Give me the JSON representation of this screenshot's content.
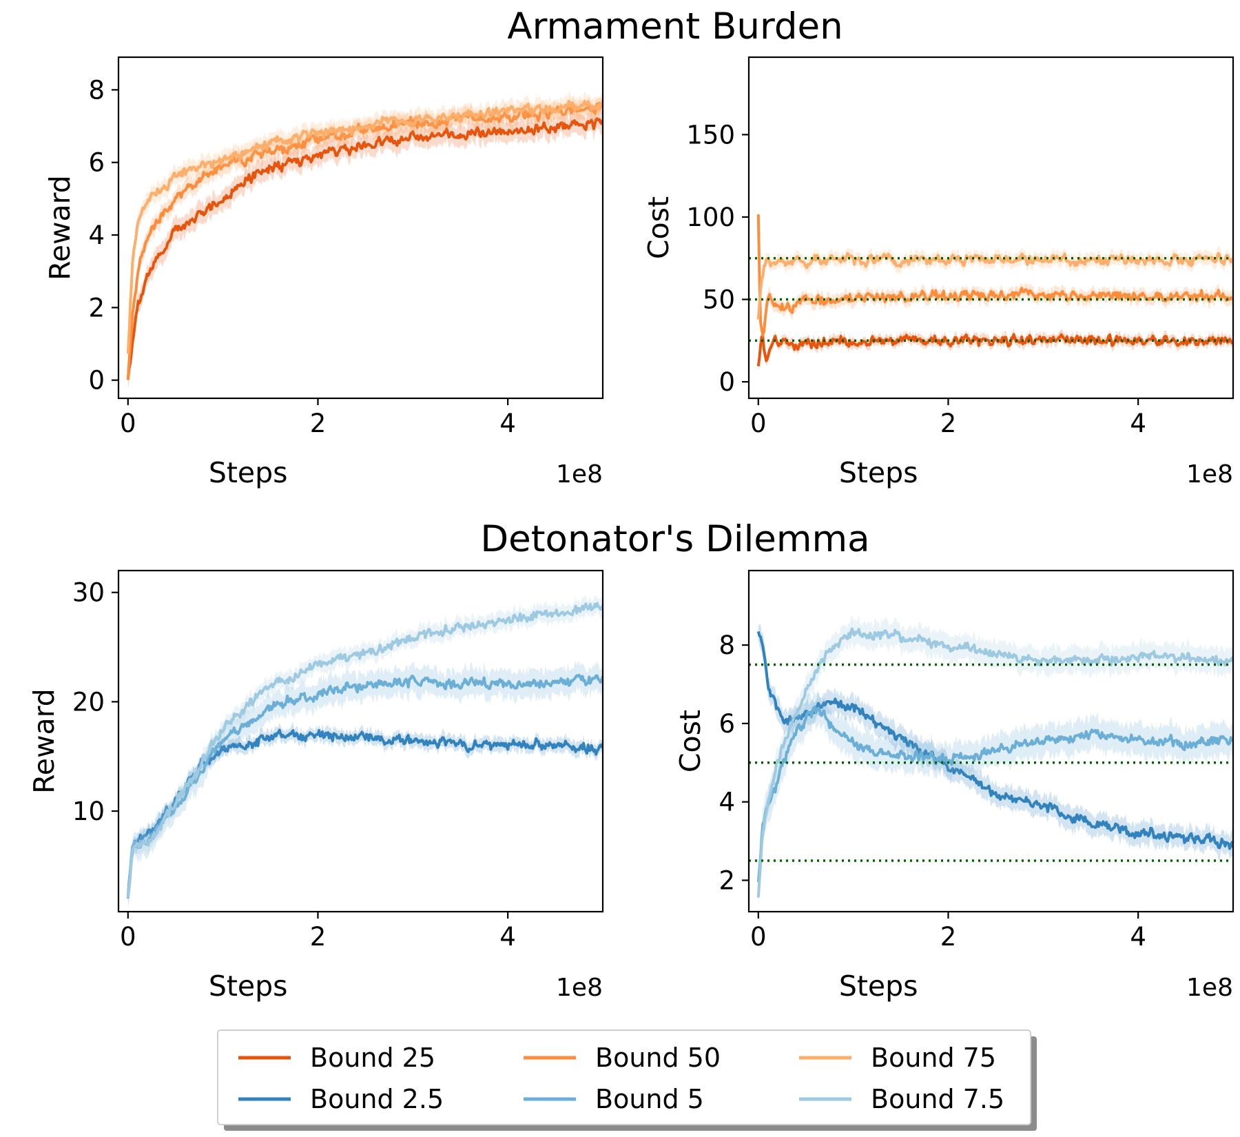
{
  "titles": [
    "Armament Burden",
    "Detonator's Dilemma"
  ],
  "chart_data": [
    {
      "type": "line",
      "group": "Armament Burden",
      "panel": "reward",
      "xlabel": "Steps",
      "ylabel": "Reward",
      "x_offset_label": "1e8",
      "xlim": [
        -0.1,
        5.0
      ],
      "ylim": [
        -0.5,
        8.9
      ],
      "xticks": [
        0,
        2,
        4
      ],
      "yticks": [
        0,
        2,
        4,
        6,
        8
      ],
      "grid": false,
      "series": [
        {
          "name": "Bound 25",
          "color": "#e6550d",
          "band": 0.35,
          "x": [
            0,
            0.05,
            0.1,
            0.2,
            0.3,
            0.5,
            0.75,
            1.0,
            1.25,
            1.5,
            2.0,
            2.5,
            3.0,
            3.5,
            4.0,
            4.5,
            5.0
          ],
          "y": [
            0.1,
            1.0,
            2.0,
            2.8,
            3.4,
            4.1,
            4.6,
            5.0,
            5.5,
            5.8,
            6.2,
            6.5,
            6.7,
            6.8,
            6.9,
            7.0,
            7.1
          ]
        },
        {
          "name": "Bound 50",
          "color": "#fd8d3c",
          "band": 0.3,
          "x": [
            0,
            0.05,
            0.1,
            0.2,
            0.3,
            0.5,
            0.75,
            1.0,
            1.25,
            1.5,
            2.0,
            2.5,
            3.0,
            3.5,
            4.0,
            4.5,
            5.0
          ],
          "y": [
            0.1,
            1.8,
            3.0,
            3.9,
            4.4,
            5.0,
            5.5,
            5.9,
            6.1,
            6.3,
            6.6,
            6.9,
            7.1,
            7.2,
            7.3,
            7.4,
            7.5
          ]
        },
        {
          "name": "Bound 75",
          "color": "#fdae6b",
          "band": 0.3,
          "x": [
            0,
            0.05,
            0.1,
            0.2,
            0.3,
            0.5,
            0.75,
            1.0,
            1.25,
            1.5,
            2.0,
            2.5,
            3.0,
            3.5,
            4.0,
            4.5,
            5.0
          ],
          "y": [
            0.8,
            3.3,
            4.3,
            4.9,
            5.2,
            5.6,
            5.9,
            6.1,
            6.3,
            6.5,
            6.8,
            7.0,
            7.2,
            7.3,
            7.4,
            7.5,
            7.6
          ]
        }
      ]
    },
    {
      "type": "line",
      "group": "Armament Burden",
      "panel": "cost",
      "xlabel": "Steps",
      "ylabel": "Cost",
      "x_offset_label": "1e8",
      "xlim": [
        -0.1,
        5.0
      ],
      "ylim": [
        -10,
        197
      ],
      "xticks": [
        0,
        2,
        4
      ],
      "yticks": [
        0,
        50,
        100,
        150
      ],
      "grid": false,
      "thresholds": [
        25,
        50,
        75
      ],
      "threshold_color": "#006400",
      "series": [
        {
          "name": "Bound 25",
          "color": "#e6550d",
          "band": 4,
          "x": [
            0,
            0.04,
            0.08,
            0.15,
            0.3,
            0.5,
            1.0,
            2.0,
            3.0,
            4.0,
            5.0
          ],
          "y": [
            12,
            30,
            14,
            26,
            22,
            24,
            25,
            25,
            25,
            25,
            25
          ]
        },
        {
          "name": "Bound 50",
          "color": "#fd8d3c",
          "band": 5,
          "x": [
            0,
            0.02,
            0.05,
            0.1,
            0.2,
            0.35,
            0.5,
            1.0,
            2.0,
            3.0,
            4.0,
            5.0
          ],
          "y": [
            104,
            40,
            28,
            52,
            45,
            44,
            50,
            51,
            52,
            52,
            52,
            52
          ]
        },
        {
          "name": "Bound 75",
          "color": "#fdae6b",
          "band": 5,
          "x": [
            0,
            0.04,
            0.08,
            0.15,
            0.3,
            0.5,
            1.0,
            2.0,
            3.0,
            4.0,
            5.0
          ],
          "y": [
            40,
            66,
            72,
            74,
            73,
            74,
            74,
            74,
            74,
            74,
            74
          ]
        }
      ]
    },
    {
      "type": "line",
      "group": "Detonator's Dilemma",
      "panel": "reward",
      "xlabel": "Steps",
      "ylabel": "Reward",
      "x_offset_label": "1e8",
      "xlim": [
        -0.1,
        5.0
      ],
      "ylim": [
        0.8,
        32
      ],
      "xticks": [
        0,
        2,
        4
      ],
      "yticks": [
        10,
        20,
        30
      ],
      "grid": false,
      "series": [
        {
          "name": "Bound 2.5",
          "color": "#3182bd",
          "band": 0.8,
          "x": [
            0,
            0.05,
            0.25,
            0.5,
            0.75,
            1.0,
            1.5,
            2.0,
            2.5,
            3.0,
            3.5,
            4.0,
            4.5,
            5.0
          ],
          "y": [
            2.5,
            7.0,
            8.0,
            11.0,
            14.0,
            15.5,
            16.8,
            17.0,
            16.8,
            16.5,
            16.2,
            16.0,
            16.0,
            15.8
          ]
        },
        {
          "name": "Bound 5",
          "color": "#6baed6",
          "band": 1.5,
          "x": [
            0,
            0.05,
            0.25,
            0.5,
            0.75,
            1.0,
            1.5,
            2.0,
            2.5,
            3.0,
            3.5,
            4.0,
            4.5,
            5.0
          ],
          "y": [
            2.5,
            6.5,
            7.8,
            10.0,
            13.5,
            16.5,
            19.5,
            20.8,
            21.5,
            21.8,
            21.8,
            21.5,
            21.8,
            22.2
          ]
        },
        {
          "name": "Bound 7.5",
          "color": "#9ecae1",
          "band": 1.0,
          "x": [
            0,
            0.05,
            0.25,
            0.5,
            0.75,
            1.0,
            1.5,
            2.0,
            2.5,
            3.0,
            3.5,
            4.0,
            4.5,
            5.0
          ],
          "y": [
            2.5,
            6.5,
            7.5,
            10.5,
            14.0,
            17.5,
            21.5,
            23.5,
            24.5,
            25.8,
            26.8,
            27.5,
            28.2,
            28.6
          ]
        }
      ]
    },
    {
      "type": "line",
      "group": "Detonator's Dilemma",
      "panel": "cost",
      "xlabel": "Steps",
      "ylabel": "Cost",
      "x_offset_label": "1e8",
      "xlim": [
        -0.1,
        5.0
      ],
      "ylim": [
        1.2,
        9.9
      ],
      "xticks": [
        0,
        2,
        4
      ],
      "yticks": [
        2,
        4,
        6,
        8
      ],
      "grid": false,
      "thresholds": [
        2.5,
        5,
        7.5
      ],
      "threshold_color": "#006400",
      "series": [
        {
          "name": "Bound 2.5",
          "color": "#3182bd",
          "band": 0.35,
          "x": [
            0,
            0.03,
            0.1,
            0.25,
            0.5,
            0.75,
            1.0,
            1.25,
            1.5,
            2.0,
            2.25,
            2.5,
            3.0,
            3.5,
            4.0,
            4.5,
            5.0
          ],
          "y": [
            8.4,
            8.2,
            7.0,
            6.0,
            6.2,
            6.6,
            6.4,
            6.0,
            5.6,
            4.9,
            4.6,
            4.2,
            3.9,
            3.5,
            3.2,
            3.1,
            2.9
          ]
        },
        {
          "name": "Bound 5",
          "color": "#6baed6",
          "band": 0.5,
          "x": [
            0,
            0.05,
            0.2,
            0.4,
            0.6,
            0.8,
            1.0,
            1.25,
            1.5,
            2.0,
            2.5,
            3.0,
            3.5,
            4.0,
            4.5,
            5.0
          ],
          "y": [
            2.0,
            3.5,
            4.5,
            5.8,
            6.4,
            5.9,
            5.5,
            5.3,
            5.2,
            5.1,
            5.3,
            5.6,
            5.7,
            5.6,
            5.5,
            5.6
          ]
        },
        {
          "name": "Bound 7.5",
          "color": "#9ecae1",
          "band": 0.4,
          "x": [
            0,
            0.05,
            0.2,
            0.4,
            0.6,
            0.8,
            1.0,
            1.25,
            1.5,
            2.0,
            2.5,
            3.0,
            3.5,
            4.0,
            4.5,
            5.0
          ],
          "y": [
            1.6,
            3.3,
            5.0,
            6.3,
            7.3,
            8.0,
            8.3,
            8.3,
            8.2,
            8.0,
            7.8,
            7.6,
            7.6,
            7.7,
            7.7,
            7.6
          ]
        }
      ]
    }
  ],
  "legend": {
    "placement": "bottom-center",
    "entries": [
      {
        "label": "Bound 25",
        "color": "#e6550d"
      },
      {
        "label": "Bound 50",
        "color": "#fd8d3c"
      },
      {
        "label": "Bound 75",
        "color": "#fdae6b"
      },
      {
        "label": "Bound 2.5",
        "color": "#3182bd"
      },
      {
        "label": "Bound 5",
        "color": "#6baed6"
      },
      {
        "label": "Bound 7.5",
        "color": "#9ecae1"
      }
    ]
  }
}
